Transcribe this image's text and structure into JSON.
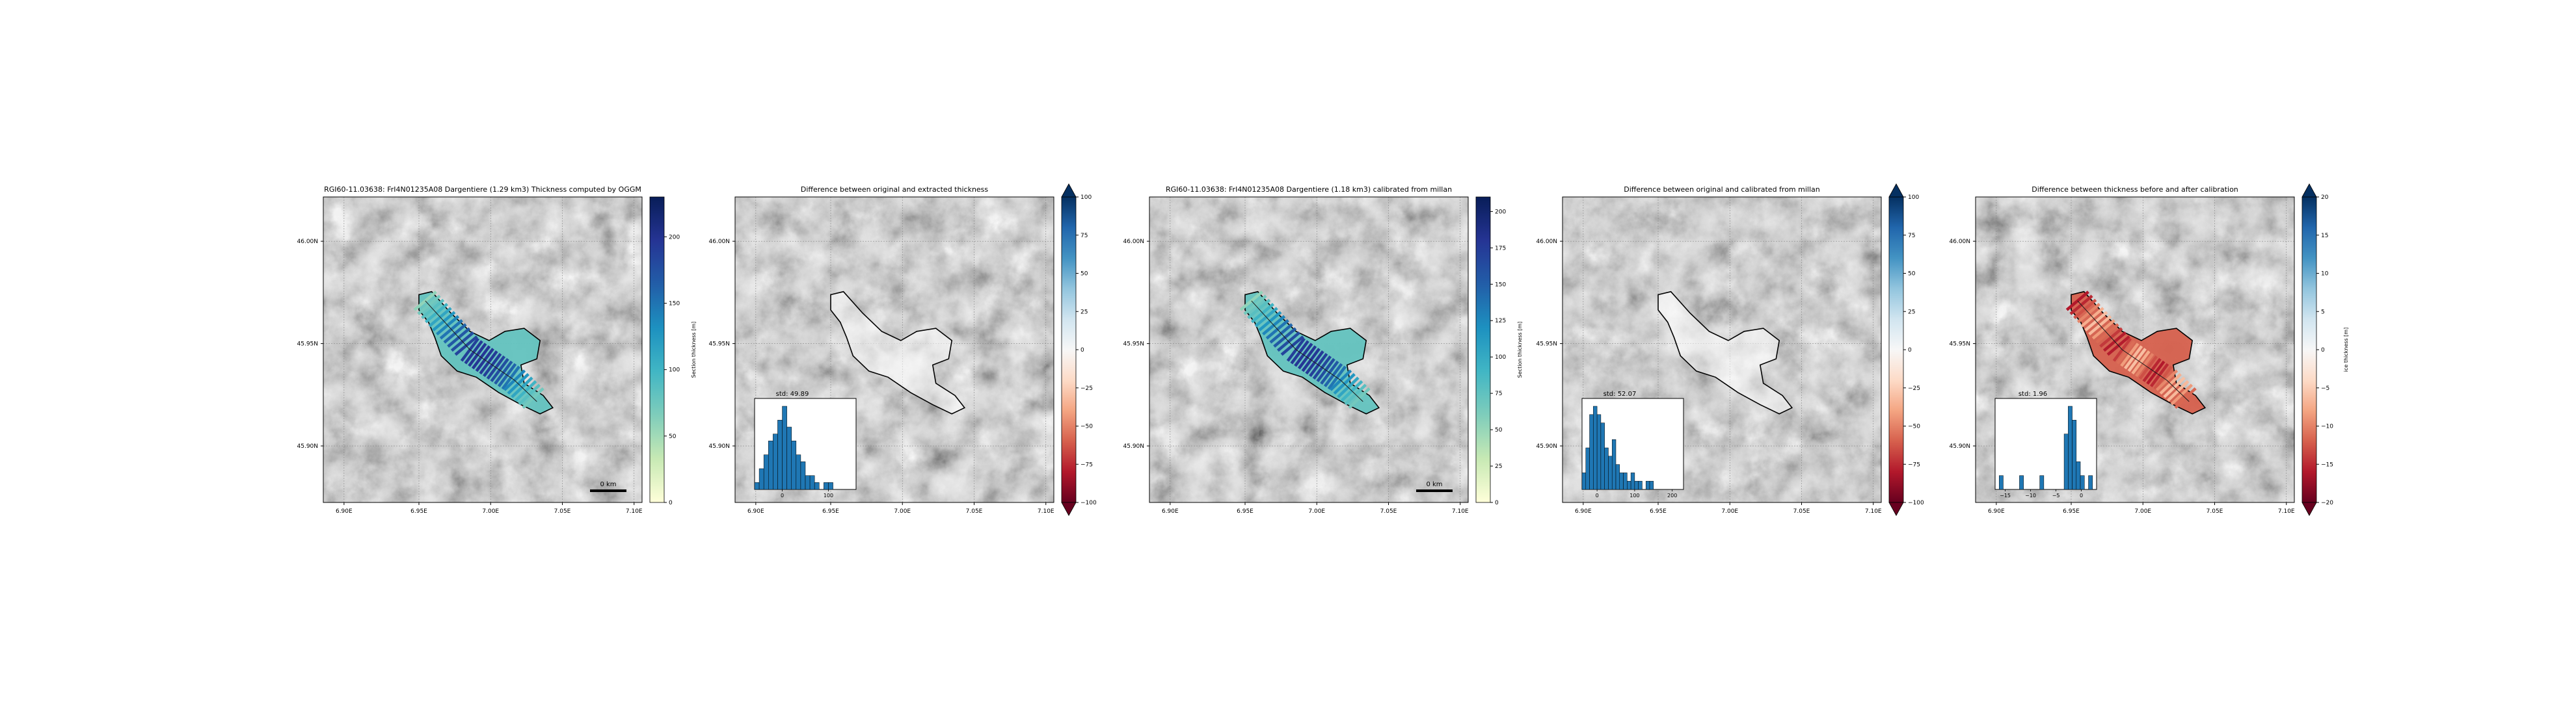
{
  "figure": {
    "lat_ticks": [
      "46.00N",
      "45.95N",
      "45.90N"
    ],
    "lon_ticks": [
      "6.90E",
      "6.95E",
      "7.00E",
      "7.05E",
      "7.10E"
    ],
    "scale_bar_label": "0 km"
  },
  "chart_data": [
    {
      "type": "map",
      "title": "RGI60-11.03638: FrI4N01235A08 Dargentiere (1.29 km3)   Thickness computed by OGGM",
      "colorbar": {
        "label": "Section thickness [m]",
        "ticks": [
          "0",
          "50",
          "100",
          "150",
          "200"
        ],
        "range": [
          0,
          230
        ],
        "colormap": "YlGnBu",
        "colors": [
          "#ffffd9",
          "#c7e9b4",
          "#7fcdbb",
          "#41b6c4",
          "#1d91c0",
          "#225ea8",
          "#253494",
          "#081d58"
        ]
      },
      "scale_bar": "0 km"
    },
    {
      "type": "map",
      "title": "Difference between original and extracted thickness",
      "colorbar": {
        "label": "",
        "ticks": [
          "100",
          "75",
          "50",
          "25",
          "0",
          "−25",
          "−50",
          "−75",
          "−100"
        ],
        "range": [
          -100,
          100
        ],
        "extend": "both",
        "colormap": "RdBu",
        "colors": [
          "#67001f",
          "#b2182b",
          "#d6604d",
          "#f4a582",
          "#fddbc7",
          "#f7f7f7",
          "#d1e5f0",
          "#92c5de",
          "#4393c3",
          "#2166ac",
          "#053061"
        ]
      },
      "inset_histogram": {
        "title": "std: 49.89",
        "xticks": [
          "0",
          "100"
        ],
        "xrange": [
          -60,
          160
        ],
        "bins_start": -60,
        "bin_width": 10,
        "counts": [
          1,
          3,
          5,
          7,
          8,
          10,
          12,
          9,
          7,
          5,
          4,
          2,
          2,
          1,
          0,
          1,
          1,
          0,
          0,
          0,
          0,
          0
        ]
      }
    },
    {
      "type": "map",
      "title": "RGI60-11.03638: FrI4N01235A08 Dargentiere (1.18 km3)          calibrated from millan",
      "colorbar": {
        "label": "Section thickness [m]",
        "ticks": [
          "0",
          "25",
          "50",
          "75",
          "100",
          "125",
          "150",
          "175",
          "200"
        ],
        "range": [
          0,
          210
        ],
        "colormap": "YlGnBu",
        "colors": [
          "#ffffd9",
          "#c7e9b4",
          "#7fcdbb",
          "#41b6c4",
          "#1d91c0",
          "#225ea8",
          "#253494",
          "#081d58"
        ]
      },
      "scale_bar": "0 km"
    },
    {
      "type": "map",
      "title": "Difference between original and calibrated from millan",
      "colorbar": {
        "label": "",
        "ticks": [
          "100",
          "75",
          "50",
          "25",
          "0",
          "−25",
          "−50",
          "−75",
          "−100"
        ],
        "range": [
          -100,
          100
        ],
        "extend": "both",
        "colormap": "RdBu",
        "colors": [
          "#67001f",
          "#b2182b",
          "#d6604d",
          "#f4a582",
          "#fddbc7",
          "#f7f7f7",
          "#d1e5f0",
          "#92c5de",
          "#4393c3",
          "#2166ac",
          "#053061"
        ]
      },
      "inset_histogram": {
        "title": "std: 52.07",
        "xticks": [
          "0",
          "100",
          "200"
        ],
        "xrange": [
          -40,
          230
        ],
        "bins_start": -40,
        "bin_width": 10,
        "counts": [
          2,
          5,
          9,
          10,
          9,
          8,
          5,
          4,
          6,
          3,
          2,
          2,
          1,
          2,
          1,
          1,
          0,
          1,
          1,
          0,
          0,
          0,
          0,
          0,
          0,
          0,
          0
        ]
      }
    },
    {
      "type": "map",
      "title": "Difference between thickness before and after calibration",
      "colorbar": {
        "label": "ice thickness [m]",
        "ticks": [
          "20",
          "15",
          "10",
          "5",
          "0",
          "−5",
          "−10",
          "−15",
          "−20"
        ],
        "range": [
          -20,
          20
        ],
        "extend": "both",
        "colormap": "RdBu",
        "colors": [
          "#67001f",
          "#b2182b",
          "#d6604d",
          "#f4a582",
          "#fddbc7",
          "#f7f7f7",
          "#d1e5f0",
          "#92c5de",
          "#4393c3",
          "#2166ac",
          "#053061"
        ]
      },
      "inset_histogram": {
        "title": "std: 1.96",
        "xticks": [
          "−15",
          "−10",
          "−5",
          "0"
        ],
        "xrange": [
          -17,
          3
        ],
        "bins_start": -17,
        "bin_width": 0.8,
        "counts": [
          0,
          1,
          0,
          0,
          0,
          0,
          1,
          0,
          0,
          0,
          0,
          1,
          0,
          0,
          0,
          0,
          0,
          4,
          6,
          5,
          2,
          1,
          0,
          1,
          0
        ]
      }
    }
  ]
}
